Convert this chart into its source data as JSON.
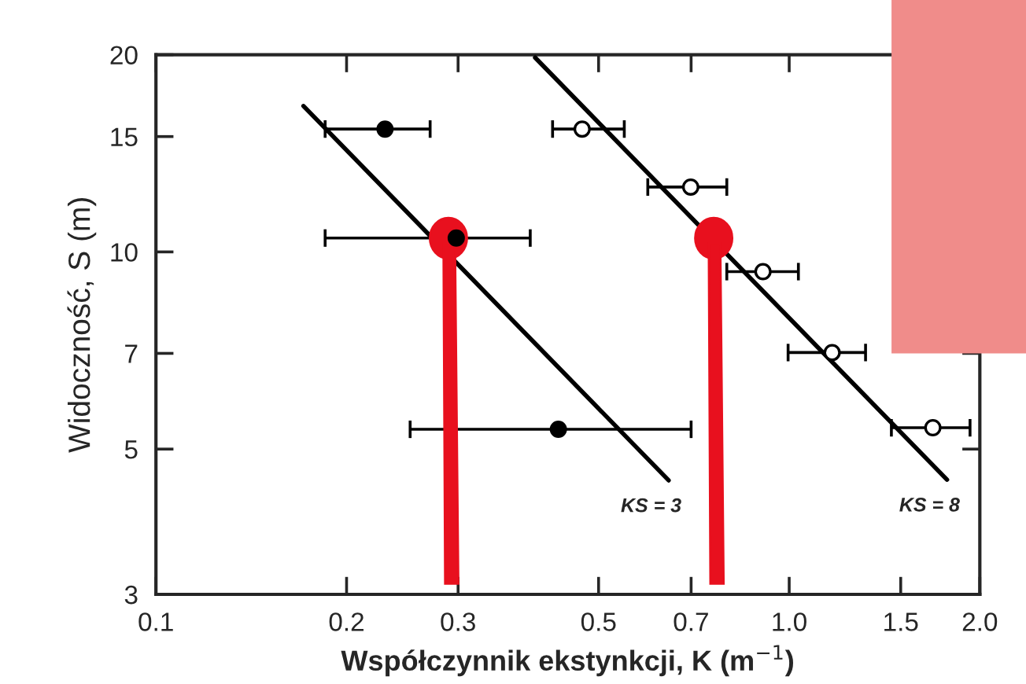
{
  "chart_data": {
    "type": "scatter",
    "xlabel": "Współczynnik ekstynkcji, K (m$^{−1}$)",
    "ylabel": "Widoczność, S (m)",
    "log": "xy",
    "xlim": [
      0.1,
      2.0
    ],
    "ylim": [
      3,
      20
    ],
    "xticks": [
      0.1,
      0.2,
      0.3,
      0.5,
      0.7,
      {
        "value": 1.0,
        "label": "1.0"
      },
      1.5,
      {
        "value": 2.0,
        "label": "2.0"
      }
    ],
    "yticks": [
      3,
      5,
      7,
      10,
      15,
      20
    ],
    "grid": false,
    "series": [
      {
        "marker": "circle",
        "color": "#000000",
        "x": [
          0.23,
          0.298,
          0.432
        ],
        "values": [
          15.4,
          10.5,
          5.36
        ],
        "xerrors": [
          [
            0.185,
            0.271
          ],
          [
            0.185,
            0.39
          ],
          [
            0.252,
            0.7
          ]
        ]
      },
      {
        "marker": "circle",
        "color": "#ffffff",
        "x": [
          0.471,
          0.699,
          0.909,
          1.169,
          1.686
        ],
        "values": [
          15.4,
          12.56,
          9.33,
          7.02,
          5.39
        ],
        "xerrors": [
          [
            0.423,
            0.549
          ],
          [
            0.598,
            0.797
          ],
          [
            0.797,
            1.034
          ],
          [
            0.996,
            1.32
          ],
          [
            1.45,
            1.93
          ]
        ]
      },
      {
        "type": "line",
        "marker": "none",
        "color": "#000000",
        "x": [
          0.171,
          0.645
        ],
        "values": [
          16.7,
          4.48
        ]
      },
      {
        "type": "line",
        "marker": "none",
        "color": "#000000",
        "x": [
          0.397,
          1.775
        ],
        "values": [
          19.8,
          4.49
        ]
      }
    ],
    "annotations": [
      "KS = 3",
      "KS = 8"
    ]
  }
}
